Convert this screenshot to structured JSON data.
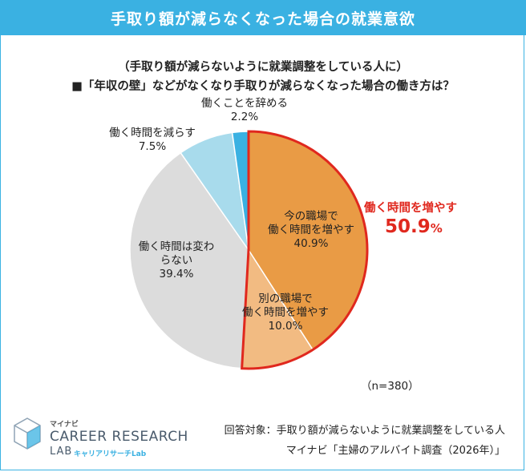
{
  "header": {
    "title": "手取り額が減らなくなった場合の就業意欲"
  },
  "question": {
    "line1": "（手取り額が減らないように就業調整をしている人に）",
    "line2": "■「年収の壁」などがなくなり手取りが減らなくなった場合の働き方は？"
  },
  "chart_data": {
    "type": "pie",
    "slices": [
      {
        "label": "今の職場で働く時間を増やす",
        "value": 40.9,
        "color": "#e99b45"
      },
      {
        "label": "別の職場で働く時間を増やす",
        "value": 10.0,
        "color": "#f2bb82"
      },
      {
        "label": "働く時間は変わらない",
        "value": 39.4,
        "color": "#dcdcdc"
      },
      {
        "label": "働く時間を減らす",
        "value": 7.5,
        "color": "#a8dbec"
      },
      {
        "label": "働くことを辞める",
        "value": 2.2,
        "color": "#3ab1e2"
      }
    ],
    "highlight": {
      "label": "働く時間を増やす",
      "value": "50.9",
      "unit": "%",
      "color": "#e0281e"
    },
    "n_label": "（n=380）"
  },
  "labels": {
    "s1_a": "今の職場で",
    "s1_b": "働く時間を増やす",
    "s1_c": "40.9%",
    "s2_a": "別の職場で",
    "s2_b": "働く時間を増やす",
    "s2_c": "10.0%",
    "s3_a": "働く時間は変わ",
    "s3_b": "らない",
    "s3_c": "39.4%",
    "s4_a": "働く時間を減らす",
    "s4_b": "7.5%",
    "s5_a": "働くことを辞める",
    "s5_b": "2.2%"
  },
  "footer": {
    "target": "回答対象：手取り額が減らないように就業調整をしている人",
    "source": "マイナビ「主婦のアルバイト調査（2026年）」"
  },
  "logo": {
    "small": "マイナビ",
    "main": "CAREER RESEARCH",
    "lab": "LAB",
    "kana": "キャリアリサーチLab"
  }
}
